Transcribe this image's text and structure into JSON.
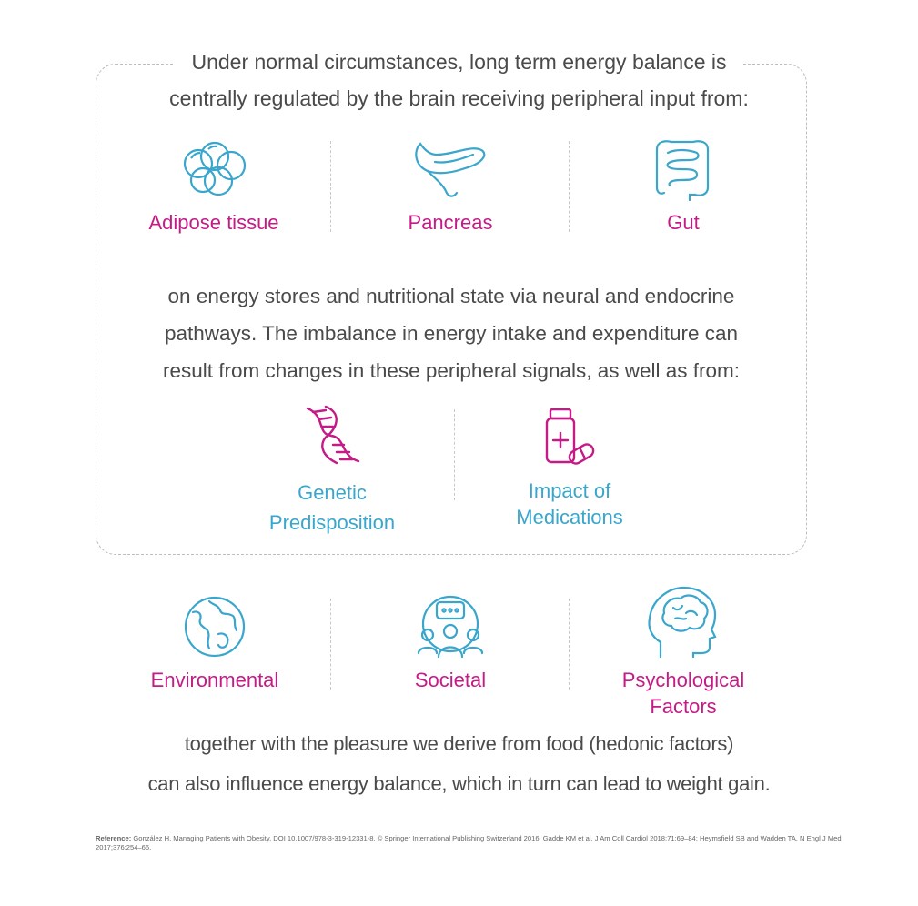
{
  "intro": {
    "line1": "Under normal circumstances, long term energy balance is",
    "line2": "centrally regulated by the brain receiving peripheral input from:"
  },
  "peripheral_inputs": [
    {
      "label": "Adipose tissue",
      "icon": "adipose-cells-icon"
    },
    {
      "label": "Pancreas",
      "icon": "pancreas-icon"
    },
    {
      "label": "Gut",
      "icon": "intestine-icon"
    }
  ],
  "middle_text": {
    "line1": "on energy stores and nutritional state via neural and endocrine",
    "line2": "pathways. The imbalance in energy intake and expenditure can",
    "line3": "result from changes in these peripheral signals, as well as from:"
  },
  "internal_factors": [
    {
      "line1": "Genetic",
      "line2": "Predisposition",
      "icon": "dna-icon"
    },
    {
      "line1": "Impact of",
      "line2": "Medications",
      "icon": "medication-bottle-icon"
    }
  ],
  "external_factors": [
    {
      "line1": "Environmental",
      "line2": "",
      "icon": "globe-icon"
    },
    {
      "line1": "Societal",
      "line2": "",
      "icon": "people-group-icon"
    },
    {
      "line1": "Psychological",
      "line2": "Factors",
      "icon": "head-brain-icon"
    }
  ],
  "closing_text": {
    "line1": "together with the pleasure we derive from food (hedonic factors)",
    "line2": "can also influence energy balance, which in turn can lead to weight gain."
  },
  "reference": {
    "label": "Reference:",
    "text": "González H. Managing Patients with Obesity, DOI 10.1007/978-3-319-12331-8, © Springer International Publishing Switzerland 2016; Gadde KM et al. J Am Coll Cardiol 2018;71:69–84; Heymsfield SB and Wadden TA. N Engl J Med 2017;376:254–66."
  },
  "colors": {
    "accent_pink": "#c41b86",
    "accent_blue": "#3aa6cc",
    "text": "#4a4a4a"
  }
}
